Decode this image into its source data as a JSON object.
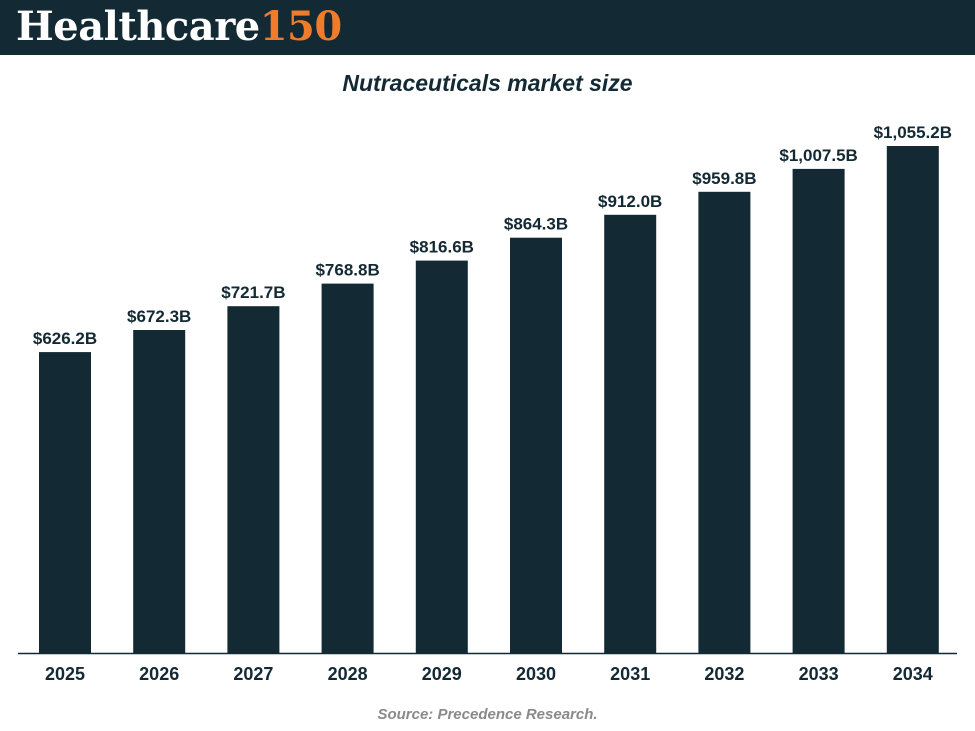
{
  "brand": {
    "word": "Healthcare",
    "number": "150"
  },
  "colors": {
    "header_bg": "#132934",
    "brand_accent": "#ee7c2b",
    "bar": "#132934",
    "text": "#132934",
    "source_text": "#8a8a8a"
  },
  "chart_data": {
    "type": "bar",
    "title": "Nutraceuticals market size",
    "xlabel": "",
    "ylabel": "",
    "unit": "USD billion",
    "categories": [
      "2025",
      "2026",
      "2027",
      "2028",
      "2029",
      "2030",
      "2031",
      "2032",
      "2033",
      "2034"
    ],
    "values": [
      626.2,
      672.3,
      721.7,
      768.8,
      816.6,
      864.3,
      912.0,
      959.8,
      1007.5,
      1055.2
    ],
    "data_labels": [
      "$626.2B",
      "$672.3B",
      "$721.7B",
      "$768.8B",
      "$816.6B",
      "$864.3B",
      "$912.0B",
      "$959.8B",
      "$1,007.5B",
      "$1,055.2B"
    ],
    "ylim": [
      0,
      1055.2
    ],
    "grid": false,
    "legend": "none"
  },
  "source": "Source: Precedence Research."
}
